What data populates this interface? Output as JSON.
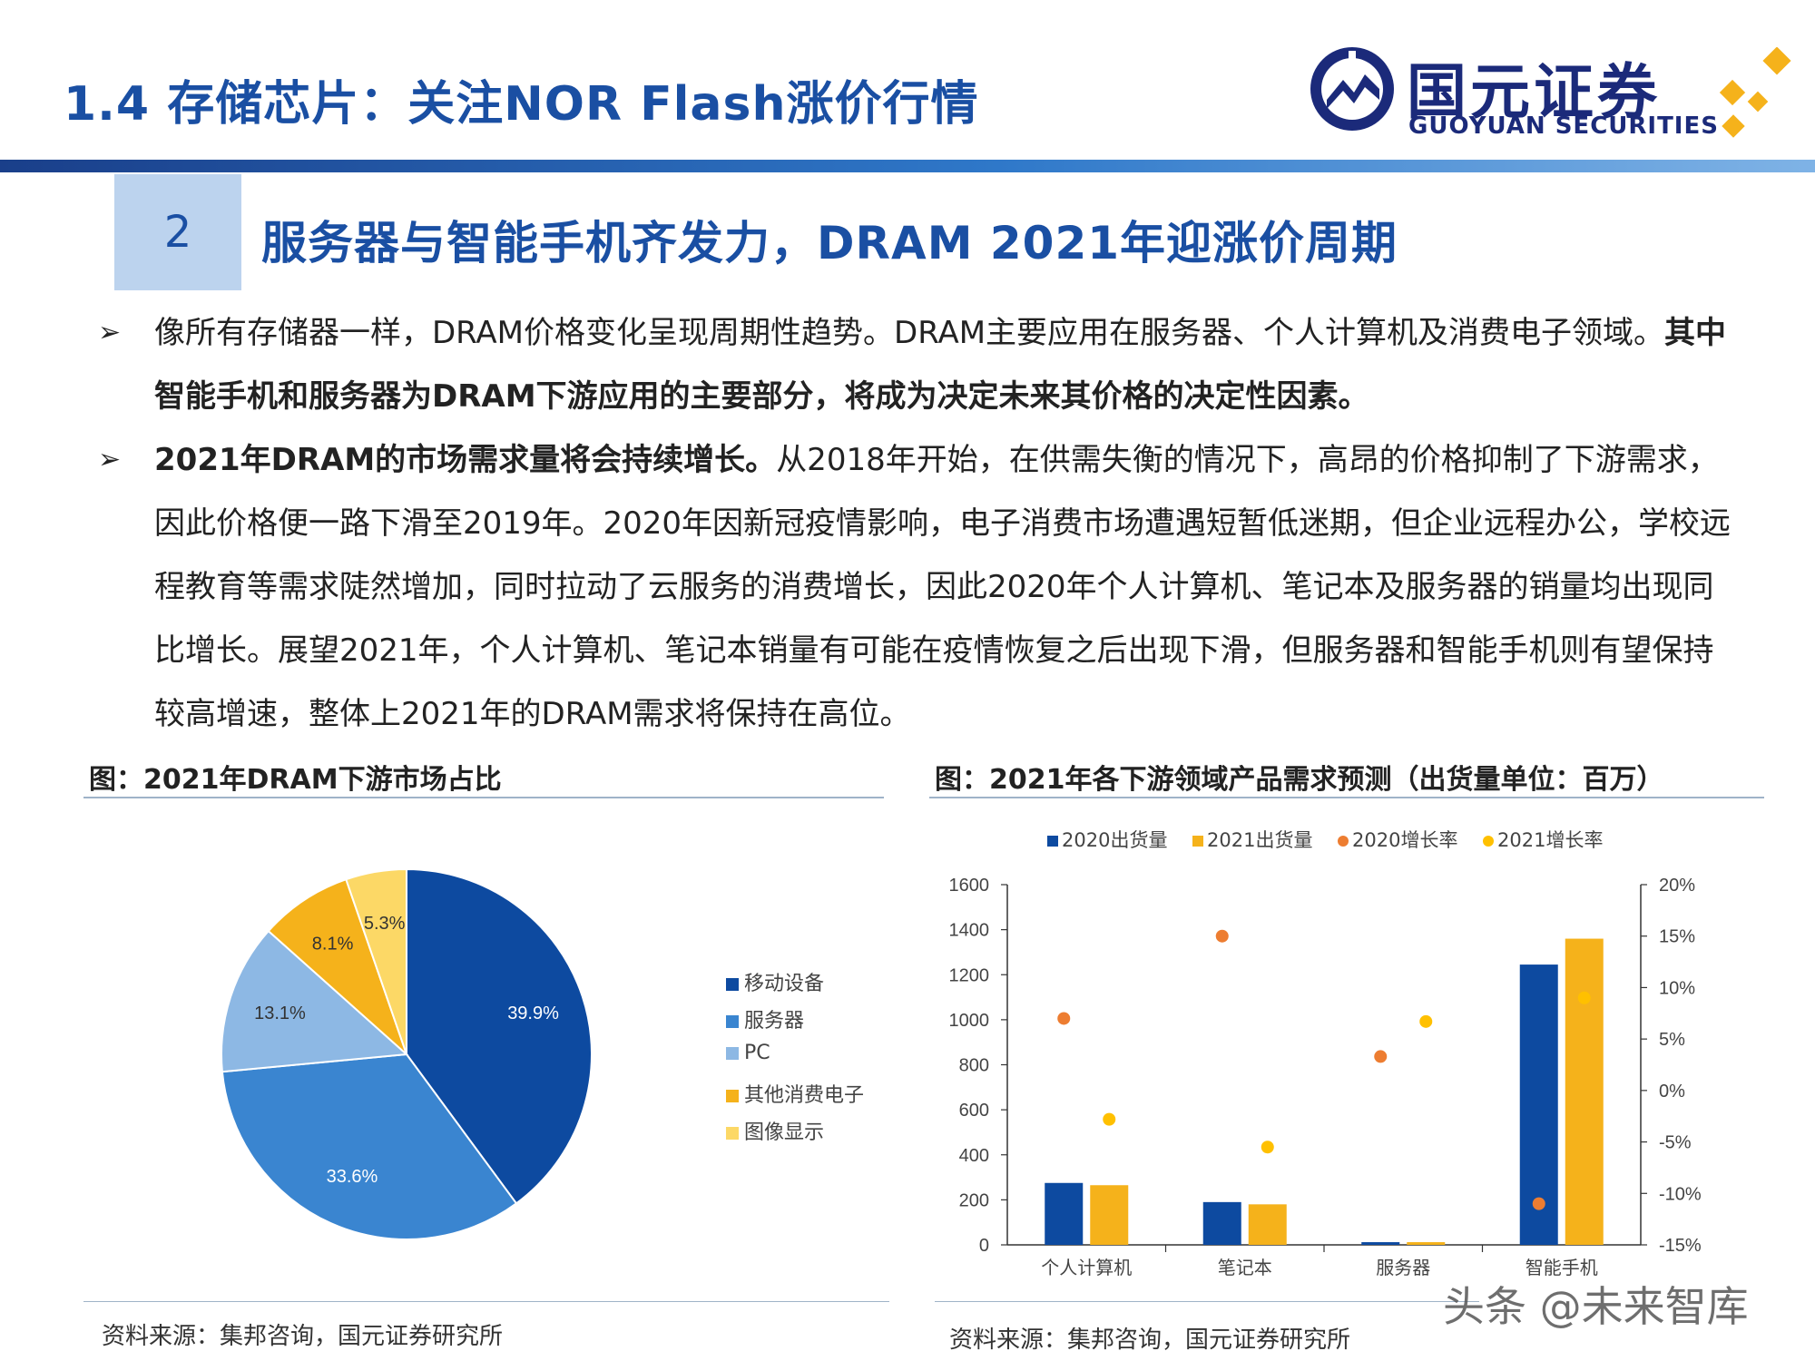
{
  "header": {
    "title": "1.4 存储芯片：关注NOR Flash涨价行情",
    "logo_cn": "国元证券",
    "logo_en": "GUOYUAN SECURITIES"
  },
  "section": {
    "number": "2",
    "title": "服务器与智能手机齐发力，DRAM 2021年迎涨价周期"
  },
  "paragraphs": {
    "p1_normal": "像所有存储器一样，DRAM价格变化呈现周期性趋势。DRAM主要应用在服务器、个人计算机及消费电子领域。",
    "p1_bold": "其中智能手机和服务器为DRAM下游应用的主要部分，将成为决定未来其价格的决定性因素。",
    "p2_bold": "2021年DRAM的市场需求量将会持续增长。",
    "p2_normal": "从2018年开始，在供需失衡的情况下，高昂的价格抑制了下游需求，因此价格便一路下滑至2019年。2020年因新冠疫情影响，电子消费市场遭遇短暂低迷期，但企业远程办公，学校远程教育等需求陡然增加，同时拉动了云服务的消费增长，因此2020年个人计算机、笔记本及服务器的销量均出现同比增长。展望2021年，个人计算机、笔记本销量有可能在疫情恢复之后出现下滑，但服务器和智能手机则有望保持较高增速，整体上2021年的DRAM需求将保持在高位。"
  },
  "figure_left": {
    "caption": "图：2021年DRAM下游市场占比",
    "source": "资料来源：集邦咨询，国元证券研究所"
  },
  "figure_right": {
    "caption": "图：2021年各下游领域产品需求预测（出货量单位：百万）",
    "source": "资料来源：集邦咨询，国元证券研究所"
  },
  "watermark": "头条 @未来智库",
  "colors": {
    "brand_blue": "#1a4fa3",
    "dark_blue": "#0d4aa0",
    "mid_blue": "#3a85d0",
    "light_blue": "#8db8e4",
    "orange": "#f5b21b",
    "light_yellow": "#fcd866",
    "rate_2020": "#ed7d31",
    "rate_2021": "#ffc000"
  },
  "chart_data": [
    {
      "type": "pie",
      "labels": [
        "移动设备",
        "服务器",
        "PC",
        "其他消费电子",
        "图像显示"
      ],
      "values": [
        39.9,
        33.6,
        13.1,
        8.1,
        5.3
      ],
      "value_labels": [
        "39.9%",
        "33.6%",
        "13.1%",
        "8.1%",
        "5.3%"
      ],
      "colors": [
        "#0d4aa0",
        "#3a85d0",
        "#8db8e4",
        "#f5b21b",
        "#fcd866"
      ],
      "legend_position": "right"
    },
    {
      "type": "bar",
      "categories": [
        "个人计算机",
        "笔记本",
        "服务器",
        "智能手机"
      ],
      "series": [
        {
          "name": "2020出货量",
          "kind": "bar",
          "axis": "left",
          "values": [
            275,
            190,
            12,
            1245
          ],
          "color": "#0d4aa0"
        },
        {
          "name": "2021出货量",
          "kind": "bar",
          "axis": "left",
          "values": [
            265,
            180,
            12,
            1360
          ],
          "color": "#f5b21b"
        },
        {
          "name": "2020增长率",
          "kind": "scatter",
          "axis": "right",
          "values": [
            7,
            15,
            3.3,
            -11
          ],
          "color": "#ed7d31"
        },
        {
          "name": "2021增长率",
          "kind": "scatter",
          "axis": "right",
          "values": [
            -2.8,
            -5.5,
            6.7,
            9
          ],
          "color": "#ffc000"
        }
      ],
      "y_left": {
        "min": 0,
        "max": 1600,
        "ticks": [
          "0",
          "200",
          "400",
          "600",
          "800",
          "1000",
          "1200",
          "1400",
          "1600"
        ]
      },
      "y_right": {
        "min": -15,
        "max": 20,
        "ticks": [
          "-15%",
          "-10%",
          "-5%",
          "0%",
          "5%",
          "10%",
          "15%",
          "20%"
        ]
      },
      "legend_position": "top",
      "grid": false
    }
  ]
}
